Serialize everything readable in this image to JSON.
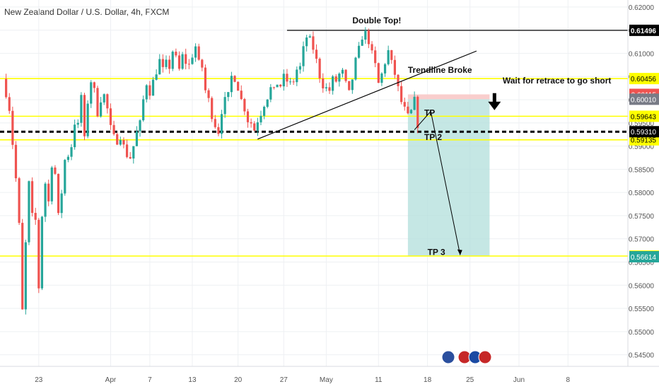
{
  "header": {
    "title": "New Zealand Dollar / U.S. Dollar, 4h, FXCM"
  },
  "colors": {
    "up": "#26a69a",
    "down": "#ef5350",
    "level": "#ffff00",
    "grid": "#eef0f3",
    "target_zone": "#b2dfdb",
    "stop_zone": "#f8c9c8",
    "axis_text": "#555555",
    "badge_red": "#ef5350",
    "badge_gray": "#787b86",
    "badge_teal": "#26a69a"
  },
  "chart_data": {
    "type": "candlestick",
    "ylim": [
      0.5425,
      0.6215
    ],
    "y_ticks": [
      "0.62000",
      "0.61500",
      "0.61000",
      "0.60500",
      "0.60000",
      "0.59500",
      "0.59000",
      "0.58500",
      "0.58000",
      "0.57500",
      "0.57000",
      "0.56500",
      "0.56000",
      "0.55500",
      "0.55000",
      "0.54500"
    ],
    "y_tick_values": [
      0.62,
      0.615,
      0.61,
      0.605,
      0.6,
      0.595,
      0.59,
      0.585,
      0.58,
      0.575,
      0.57,
      0.565,
      0.56,
      0.555,
      0.55,
      0.545
    ],
    "x_ticks": [
      "23",
      "Apr",
      "7",
      "13",
      "20",
      "27",
      "May",
      "11",
      "18",
      "25",
      "Jun",
      "8"
    ],
    "x_tick_index": [
      11,
      33,
      45,
      58,
      72,
      86,
      99,
      115,
      130,
      143,
      158,
      173
    ],
    "bar_count": 190,
    "last_index": 127,
    "close_path": [
      [
        0,
        0.6045
      ],
      [
        2,
        0.598
      ],
      [
        4,
        0.583
      ],
      [
        5,
        0.573
      ],
      [
        6,
        0.5545
      ],
      [
        7,
        0.569
      ],
      [
        8,
        0.582
      ],
      [
        9,
        0.575
      ],
      [
        10,
        0.574
      ],
      [
        11,
        0.5595
      ],
      [
        12,
        0.575
      ],
      [
        13,
        0.582
      ],
      [
        14,
        0.578
      ],
      [
        15,
        0.586
      ],
      [
        16,
        0.584
      ],
      [
        17,
        0.575
      ],
      [
        18,
        0.58
      ],
      [
        19,
        0.587
      ],
      [
        20,
        0.588
      ],
      [
        21,
        0.59
      ],
      [
        22,
        0.595
      ],
      [
        23,
        0.5945
      ],
      [
        24,
        0.601
      ],
      [
        25,
        0.5915
      ],
      [
        26,
        0.5995
      ],
      [
        27,
        0.604
      ],
      [
        28,
        0.602
      ],
      [
        29,
        0.597
      ],
      [
        30,
        0.6
      ],
      [
        31,
        0.601
      ],
      [
        32,
        0.598
      ],
      [
        33,
        0.594
      ],
      [
        34,
        0.592
      ],
      [
        35,
        0.591
      ],
      [
        36,
        0.592
      ],
      [
        37,
        0.59
      ],
      [
        38,
        0.588
      ],
      [
        39,
        0.5875
      ],
      [
        40,
        0.59
      ],
      [
        41,
        0.593
      ],
      [
        42,
        0.595
      ],
      [
        43,
        0.6
      ],
      [
        44,
        0.6035
      ],
      [
        45,
        0.6015
      ],
      [
        46,
        0.604
      ],
      [
        47,
        0.606
      ],
      [
        48,
        0.6085
      ],
      [
        49,
        0.6065
      ],
      [
        50,
        0.608
      ],
      [
        51,
        0.607
      ],
      [
        52,
        0.6105
      ],
      [
        53,
        0.609
      ],
      [
        54,
        0.6065
      ],
      [
        55,
        0.6095
      ],
      [
        56,
        0.608
      ],
      [
        57,
        0.6075
      ],
      [
        58,
        0.6095
      ],
      [
        59,
        0.6115
      ],
      [
        60,
        0.608
      ],
      [
        61,
        0.607
      ],
      [
        62,
        0.602
      ],
      [
        63,
        0.6
      ],
      [
        64,
        0.5965
      ],
      [
        65,
        0.5945
      ],
      [
        66,
        0.593
      ],
      [
        67,
        0.5975
      ],
      [
        68,
        0.6
      ],
      [
        69,
        0.601
      ],
      [
        70,
        0.605
      ],
      [
        71,
        0.6045
      ],
      [
        72,
        0.6025
      ],
      [
        73,
        0.6
      ],
      [
        74,
        0.598
      ],
      [
        75,
        0.5955
      ],
      [
        76,
        0.595
      ],
      [
        77,
        0.5935
      ],
      [
        78,
        0.5955
      ],
      [
        79,
        0.597
      ],
      [
        80,
        0.599
      ],
      [
        81,
        0.6005
      ],
      [
        82,
        0.6025
      ],
      [
        83,
        0.602
      ],
      [
        84,
        0.6035
      ],
      [
        85,
        0.603
      ],
      [
        86,
        0.605
      ],
      [
        87,
        0.604
      ],
      [
        88,
        0.6035
      ],
      [
        89,
        0.604
      ],
      [
        90,
        0.6065
      ],
      [
        91,
        0.607
      ],
      [
        92,
        0.611
      ],
      [
        93,
        0.6135
      ],
      [
        94,
        0.613
      ],
      [
        95,
        0.611
      ],
      [
        96,
        0.6085
      ],
      [
        97,
        0.605
      ],
      [
        98,
        0.603
      ],
      [
        99,
        0.6025
      ],
      [
        100,
        0.602
      ],
      [
        101,
        0.6045
      ],
      [
        102,
        0.604
      ],
      [
        103,
        0.6055
      ],
      [
        104,
        0.606
      ],
      [
        105,
        0.6035
      ],
      [
        106,
        0.6015
      ],
      [
        107,
        0.6045
      ],
      [
        108,
        0.6085
      ],
      [
        109,
        0.611
      ],
      [
        110,
        0.6135
      ],
      [
        111,
        0.6145
      ],
      [
        112,
        0.6125
      ],
      [
        113,
        0.61
      ],
      [
        114,
        0.6075
      ],
      [
        115,
        0.6035
      ],
      [
        116,
        0.6055
      ],
      [
        117,
        0.608
      ],
      [
        118,
        0.6105
      ],
      [
        119,
        0.608
      ],
      [
        120,
        0.6055
      ],
      [
        121,
        0.6025
      ],
      [
        122,
        0.5995
      ],
      [
        123,
        0.598
      ],
      [
        124,
        0.5965
      ],
      [
        125,
        0.5975
      ],
      [
        126,
        0.6
      ],
      [
        127,
        0.5945
      ]
    ],
    "levels": [
      {
        "value": 0.60456,
        "label": "0.60456",
        "color": "#ffff00",
        "badge": "yellow"
      },
      {
        "value": 0.59643,
        "label": "0.59643",
        "color": "#ffff00",
        "badge": "yellow"
      },
      {
        "value": 0.59135,
        "label": "0.59135",
        "color": "#ffff00",
        "badge": "yellow"
      },
      {
        "value": 0.56629,
        "label": "0.56629",
        "color": "#ffff00",
        "badge": "yellow"
      }
    ],
    "double_top_line": {
      "value": 0.61496,
      "label": "0.61496",
      "from_index": 87
    },
    "dashed_line": {
      "value": 0.5931,
      "label": "0.59310"
    },
    "price_badges": [
      {
        "value": 0.60115,
        "label": "0.60115",
        "style": "red"
      },
      {
        "value": 0.6001,
        "label": "0.60010",
        "style": "gray"
      },
      {
        "value": 0.56614,
        "label": "0.56614",
        "style": "teal"
      }
    ],
    "trendline": {
      "from": [
        78,
        0.5915
      ],
      "to": [
        145,
        0.6105
      ]
    },
    "position": {
      "from_index": 124,
      "to_index": 149,
      "stop": 0.60115,
      "entry": 0.6001,
      "target": 0.56629
    },
    "path_arrow": [
      [
        126,
        0.5935
      ],
      [
        131,
        0.5975
      ],
      [
        140,
        0.5665
      ]
    ],
    "annotations": [
      {
        "name": "double-top-label",
        "text": "Double Top!",
        "x": 107,
        "y": 0.6165
      },
      {
        "name": "trendline-broke-label",
        "text": "Trendline Broke",
        "x": 124,
        "y": 0.6058
      },
      {
        "name": "retrace-label",
        "text": "Wait for retrace to go short",
        "x": 153,
        "y": 0.6035
      },
      {
        "name": "tp1-label",
        "text": "TP",
        "x": 129,
        "y": 0.5966
      },
      {
        "name": "tp2-label",
        "text": "TP 2",
        "x": 129,
        "y": 0.5913
      },
      {
        "name": "tp3-label",
        "text": "TP 3",
        "x": 130,
        "y": 0.5665
      }
    ]
  }
}
